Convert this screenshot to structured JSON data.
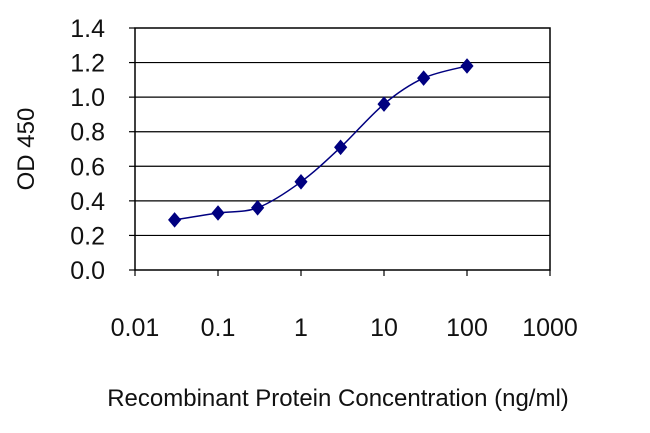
{
  "chart_data": {
    "type": "line",
    "title": "",
    "xlabel": "Recombinant Protein Concentration (ng/ml)",
    "ylabel": "OD 450",
    "x_scale": "log",
    "xlim": [
      0.01,
      1000
    ],
    "ylim": [
      0.0,
      1.4
    ],
    "x_ticks": [
      "0.01",
      "0.1",
      "1",
      "10",
      "100",
      "1000"
    ],
    "y_ticks": [
      "0.0",
      "0.2",
      "0.4",
      "0.6",
      "0.8",
      "1.0",
      "1.2",
      "1.4"
    ],
    "grid": "horizontal",
    "legend": "none",
    "series": [
      {
        "color": "#000080",
        "marker": "diamond",
        "x": [
          0.03,
          0.1,
          0.3,
          1,
          3,
          10,
          30,
          100
        ],
        "y": [
          0.29,
          0.33,
          0.36,
          0.51,
          0.71,
          0.96,
          1.11,
          1.18
        ]
      }
    ]
  }
}
